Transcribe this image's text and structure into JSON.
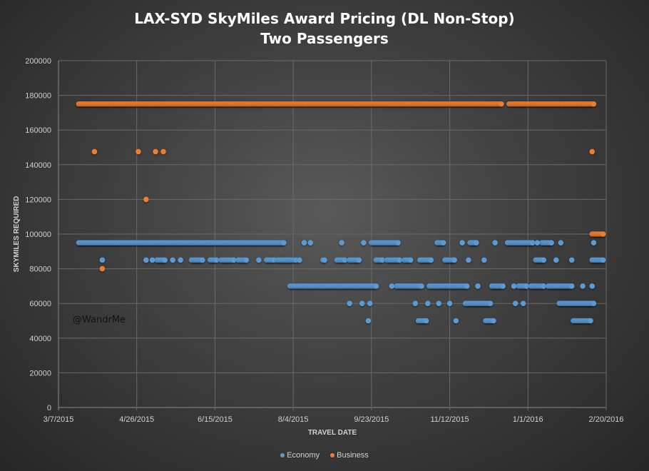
{
  "chart_data": {
    "type": "scatter",
    "title": "LAX-SYD SkyMiles Award Pricing (DL Non-Stop)",
    "subtitle": "Two Passengers",
    "xlabel": "TRAVEL DATE",
    "ylabel": "SKYMILES REQUIRED",
    "xlim": [
      "2015-03-07",
      "2016-02-20"
    ],
    "ylim": [
      0,
      200000
    ],
    "x_ticks": [
      "3/7/2015",
      "4/26/2015",
      "6/15/2015",
      "8/4/2015",
      "9/23/2015",
      "11/12/2015",
      "1/1/2016",
      "2/20/2016"
    ],
    "y_ticks": [
      "0",
      "20000",
      "40000",
      "60000",
      "80000",
      "100000",
      "120000",
      "140000",
      "160000",
      "180000",
      "200000"
    ],
    "grid": true,
    "legend": "bottom",
    "watermark": "@WandrMe",
    "series": [
      {
        "name": "Economy",
        "color": "#5B9BD5",
        "note_runs": "daily points between from and to",
        "runs": [
          {
            "from": "2015-03-20",
            "to": "2015-07-29",
            "value": 95000
          },
          {
            "from": "2015-09-23",
            "to": "2015-10-10",
            "value": 95000
          },
          {
            "from": "2015-11-04",
            "to": "2015-11-08",
            "value": 95000
          },
          {
            "from": "2015-11-25",
            "to": "2015-11-29",
            "value": 95000
          },
          {
            "from": "2015-12-19",
            "to": "2016-01-04",
            "value": 95000
          },
          {
            "from": "2016-01-10",
            "to": "2016-01-16",
            "value": 95000
          },
          {
            "from": "2015-05-09",
            "to": "2015-05-14",
            "value": 85000
          },
          {
            "from": "2015-05-31",
            "to": "2015-06-07",
            "value": 85000
          },
          {
            "from": "2015-06-12",
            "to": "2015-06-16",
            "value": 85000
          },
          {
            "from": "2015-06-19",
            "to": "2015-06-27",
            "value": 85000
          },
          {
            "from": "2015-06-30",
            "to": "2015-07-05",
            "value": 85000
          },
          {
            "from": "2015-07-18",
            "to": "2015-07-23",
            "value": 85000
          },
          {
            "from": "2015-07-25",
            "to": "2015-08-06",
            "value": 85000
          },
          {
            "from": "2015-09-01",
            "to": "2015-09-06",
            "value": 85000
          },
          {
            "from": "2015-09-09",
            "to": "2015-09-15",
            "value": 85000
          },
          {
            "from": "2015-09-26",
            "to": "2015-09-30",
            "value": 85000
          },
          {
            "from": "2015-10-03",
            "to": "2015-10-11",
            "value": 85000
          },
          {
            "from": "2015-10-14",
            "to": "2015-10-18",
            "value": 85000
          },
          {
            "from": "2015-10-24",
            "to": "2015-10-31",
            "value": 85000
          },
          {
            "from": "2015-11-09",
            "to": "2015-11-15",
            "value": 85000
          },
          {
            "from": "2016-01-06",
            "to": "2016-01-11",
            "value": 85000
          },
          {
            "from": "2016-02-11",
            "to": "2016-02-18",
            "value": 85000
          },
          {
            "from": "2015-08-02",
            "to": "2015-09-26",
            "value": 70000
          },
          {
            "from": "2015-10-09",
            "to": "2015-10-25",
            "value": 70000
          },
          {
            "from": "2015-10-30",
            "to": "2015-11-23",
            "value": 70000
          },
          {
            "from": "2015-12-09",
            "to": "2015-12-16",
            "value": 70000
          },
          {
            "from": "2015-12-26",
            "to": "2015-12-31",
            "value": 70000
          },
          {
            "from": "2016-01-03",
            "to": "2016-01-11",
            "value": 70000
          },
          {
            "from": "2016-01-14",
            "to": "2016-01-29",
            "value": 70000
          },
          {
            "from": "2015-11-22",
            "to": "2015-12-08",
            "value": 60000
          },
          {
            "from": "2016-01-21",
            "to": "2016-02-12",
            "value": 60000
          },
          {
            "from": "2015-10-23",
            "to": "2015-10-28",
            "value": 50000
          },
          {
            "from": "2015-12-05",
            "to": "2015-12-10",
            "value": 50000
          },
          {
            "from": "2016-01-30",
            "to": "2016-02-10",
            "value": 50000
          }
        ],
        "points": [
          [
            "2015-08-11",
            95000
          ],
          [
            "2015-08-15",
            95000
          ],
          [
            "2015-09-04",
            95000
          ],
          [
            "2015-09-18",
            95000
          ],
          [
            "2015-11-20",
            95000
          ],
          [
            "2015-12-11",
            95000
          ],
          [
            "2016-01-07",
            95000
          ],
          [
            "2016-01-22",
            95000
          ],
          [
            "2016-02-12",
            95000
          ],
          [
            "2015-04-04",
            85000
          ],
          [
            "2015-05-02",
            85000
          ],
          [
            "2015-05-06",
            85000
          ],
          [
            "2015-05-19",
            85000
          ],
          [
            "2015-05-24",
            85000
          ],
          [
            "2015-07-13",
            85000
          ],
          [
            "2015-08-08",
            85000
          ],
          [
            "2015-08-23",
            85000
          ],
          [
            "2015-08-24",
            85000
          ],
          [
            "2015-11-24",
            85000
          ],
          [
            "2015-12-04",
            85000
          ],
          [
            "2016-01-19",
            85000
          ],
          [
            "2016-01-29",
            85000
          ],
          [
            "2015-10-06",
            70000
          ],
          [
            "2015-11-30",
            70000
          ],
          [
            "2015-12-23",
            70000
          ],
          [
            "2016-02-05",
            70000
          ],
          [
            "2016-02-11",
            70000
          ],
          [
            "2015-09-09",
            60000
          ],
          [
            "2015-09-17",
            60000
          ],
          [
            "2015-09-22",
            60000
          ],
          [
            "2015-10-21",
            60000
          ],
          [
            "2015-10-29",
            60000
          ],
          [
            "2015-11-05",
            60000
          ],
          [
            "2015-11-12",
            60000
          ],
          [
            "2015-12-24",
            60000
          ],
          [
            "2015-12-29",
            60000
          ],
          [
            "2015-09-21",
            50000
          ],
          [
            "2015-11-16",
            50000
          ]
        ]
      },
      {
        "name": "Business",
        "color": "#ED7D31",
        "runs": [
          {
            "from": "2015-03-20",
            "to": "2015-12-15",
            "value": 175000
          },
          {
            "from": "2015-12-20",
            "to": "2016-02-12",
            "value": 175000
          },
          {
            "from": "2016-02-11",
            "to": "2016-02-18",
            "value": 100000
          }
        ],
        "points": [
          [
            "2015-03-30",
            147500
          ],
          [
            "2015-04-27",
            147500
          ],
          [
            "2015-05-08",
            147500
          ],
          [
            "2015-05-13",
            147500
          ],
          [
            "2016-02-11",
            147500
          ],
          [
            "2015-05-02",
            120000
          ],
          [
            "2015-04-04",
            80000
          ]
        ]
      }
    ]
  }
}
